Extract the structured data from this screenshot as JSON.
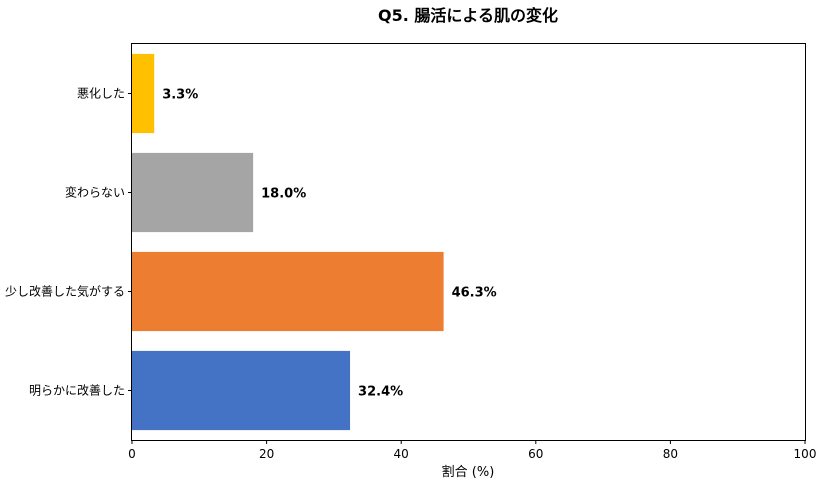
{
  "chart_data": {
    "type": "bar",
    "orientation": "horizontal",
    "title": "Q5. 腸活による肌の変化",
    "xlabel": "割合 (%)",
    "ylabel": "",
    "xlim": [
      0,
      100
    ],
    "xticks": [
      "0",
      "20",
      "40",
      "60",
      "80",
      "100"
    ],
    "grid": false,
    "categories": [
      "悪化した",
      "変わらない",
      "少し改善した気がする",
      "明らかに改善した"
    ],
    "values": [
      3.3,
      18.0,
      46.3,
      32.4
    ],
    "value_labels": [
      "3.3%",
      "18.0%",
      "46.3%",
      "32.4%"
    ],
    "colors": [
      "#FFC000",
      "#A5A5A5",
      "#ED7D31",
      "#4472C4"
    ]
  }
}
